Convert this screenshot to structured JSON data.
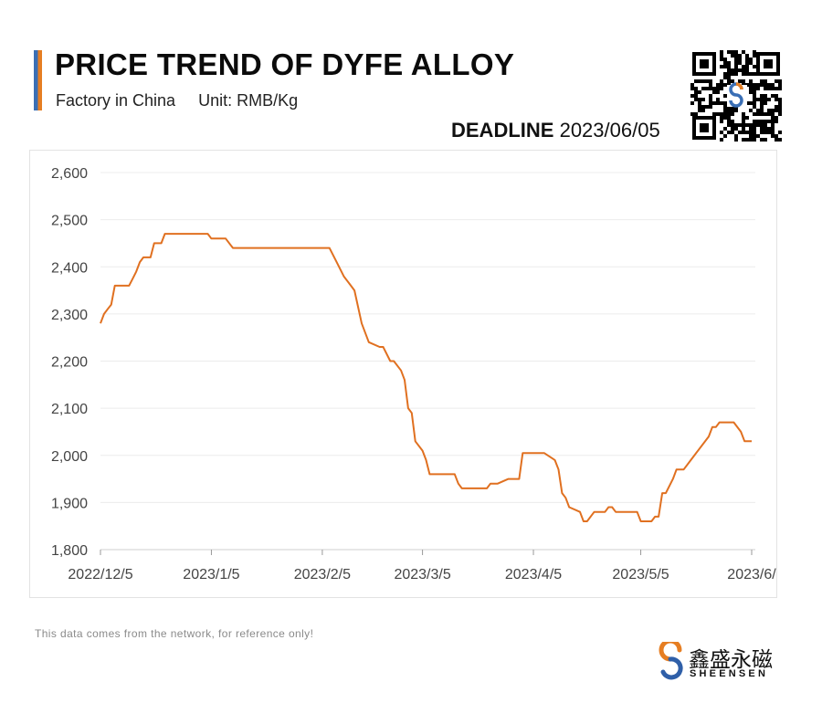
{
  "header": {
    "title": "PRICE TREND OF DYFE ALLOY",
    "subtitle_location": "Factory in China",
    "subtitle_unit": "Unit: RMB/Kg",
    "deadline_label": "DEADLINE",
    "deadline_date": "2023/06/05"
  },
  "footer": {
    "disclaimer": "This data comes from the network, for reference only!",
    "brand_cn": "鑫盛永磁",
    "brand_en": "SHEENSEN"
  },
  "colors": {
    "line": "#e07020",
    "accent_blue": "#3a6fb5",
    "accent_orange": "#e67e22"
  },
  "chart_data": {
    "type": "line",
    "title": "PRICE TREND OF DYFE ALLOY",
    "xlabel": "",
    "ylabel": "",
    "ylim": [
      1800,
      2600
    ],
    "yticks": [
      1800,
      1900,
      2000,
      2100,
      2200,
      2300,
      2400,
      2500,
      2600
    ],
    "ytick_labels": [
      "1,800",
      "1,900",
      "2,000",
      "2,100",
      "2,200",
      "2,300",
      "2,400",
      "2,500",
      "2,600"
    ],
    "xlim": [
      "2022-12-05",
      "2023-06-05"
    ],
    "xtick_labels": [
      {
        "date": "2022-12-05",
        "label": "2022/12/5"
      },
      {
        "date": "2023-01-05",
        "label": "2023/1/5"
      },
      {
        "date": "2023-02-05",
        "label": "2023/2/5"
      },
      {
        "date": "2023-03-05",
        "label": "2023/3/5"
      },
      {
        "date": "2023-04-05",
        "label": "2023/4/5"
      },
      {
        "date": "2023-05-05",
        "label": "2023/5/5"
      },
      {
        "date": "2023-06-05",
        "label": "2023/6/"
      }
    ],
    "grid": true,
    "series": [
      {
        "points": [
          [
            "2022-12-05",
            2280
          ],
          [
            "2022-12-06",
            2300
          ],
          [
            "2022-12-07",
            2310
          ],
          [
            "2022-12-08",
            2320
          ],
          [
            "2022-12-09",
            2360
          ],
          [
            "2022-12-13",
            2360
          ],
          [
            "2022-12-14",
            2375
          ],
          [
            "2022-12-15",
            2390
          ],
          [
            "2022-12-16",
            2410
          ],
          [
            "2022-12-17",
            2420
          ],
          [
            "2022-12-19",
            2420
          ],
          [
            "2022-12-20",
            2450
          ],
          [
            "2022-12-22",
            2450
          ],
          [
            "2022-12-23",
            2470
          ],
          [
            "2023-01-04",
            2470
          ],
          [
            "2023-01-05",
            2460
          ],
          [
            "2023-01-09",
            2460
          ],
          [
            "2023-01-11",
            2440
          ],
          [
            "2023-02-07",
            2440
          ],
          [
            "2023-02-09",
            2410
          ],
          [
            "2023-02-11",
            2380
          ],
          [
            "2023-02-13",
            2360
          ],
          [
            "2023-02-14",
            2350
          ],
          [
            "2023-02-16",
            2280
          ],
          [
            "2023-02-18",
            2240
          ],
          [
            "2023-02-21",
            2230
          ],
          [
            "2023-02-22",
            2230
          ],
          [
            "2023-02-24",
            2200
          ],
          [
            "2023-02-25",
            2200
          ],
          [
            "2023-02-27",
            2180
          ],
          [
            "2023-02-28",
            2160
          ],
          [
            "2023-03-01",
            2100
          ],
          [
            "2023-03-02",
            2090
          ],
          [
            "2023-03-03",
            2030
          ],
          [
            "2023-03-05",
            2010
          ],
          [
            "2023-03-06",
            1990
          ],
          [
            "2023-03-07",
            1960
          ],
          [
            "2023-03-14",
            1960
          ],
          [
            "2023-03-15",
            1940
          ],
          [
            "2023-03-16",
            1930
          ],
          [
            "2023-03-23",
            1930
          ],
          [
            "2023-03-24",
            1940
          ],
          [
            "2023-03-26",
            1940
          ],
          [
            "2023-03-29",
            1950
          ],
          [
            "2023-04-01",
            1950
          ],
          [
            "2023-04-02",
            2005
          ],
          [
            "2023-04-08",
            2005
          ],
          [
            "2023-04-10",
            1995
          ],
          [
            "2023-04-11",
            1990
          ],
          [
            "2023-04-12",
            1970
          ],
          [
            "2023-04-13",
            1920
          ],
          [
            "2023-04-14",
            1910
          ],
          [
            "2023-04-15",
            1890
          ],
          [
            "2023-04-18",
            1880
          ],
          [
            "2023-04-19",
            1860
          ],
          [
            "2023-04-20",
            1860
          ],
          [
            "2023-04-22",
            1880
          ],
          [
            "2023-04-25",
            1880
          ],
          [
            "2023-04-26",
            1890
          ],
          [
            "2023-04-27",
            1890
          ],
          [
            "2023-04-28",
            1880
          ],
          [
            "2023-05-04",
            1880
          ],
          [
            "2023-05-05",
            1860
          ],
          [
            "2023-05-08",
            1860
          ],
          [
            "2023-05-09",
            1870
          ],
          [
            "2023-05-10",
            1870
          ],
          [
            "2023-05-11",
            1920
          ],
          [
            "2023-05-12",
            1920
          ],
          [
            "2023-05-14",
            1950
          ],
          [
            "2023-05-15",
            1970
          ],
          [
            "2023-05-17",
            1970
          ],
          [
            "2023-05-19",
            1990
          ],
          [
            "2023-05-24",
            2040
          ],
          [
            "2023-05-25",
            2060
          ],
          [
            "2023-05-26",
            2060
          ],
          [
            "2023-05-27",
            2070
          ],
          [
            "2023-05-31",
            2070
          ],
          [
            "2023-06-02",
            2050
          ],
          [
            "2023-06-03",
            2030
          ],
          [
            "2023-06-05",
            2030
          ]
        ]
      }
    ]
  }
}
